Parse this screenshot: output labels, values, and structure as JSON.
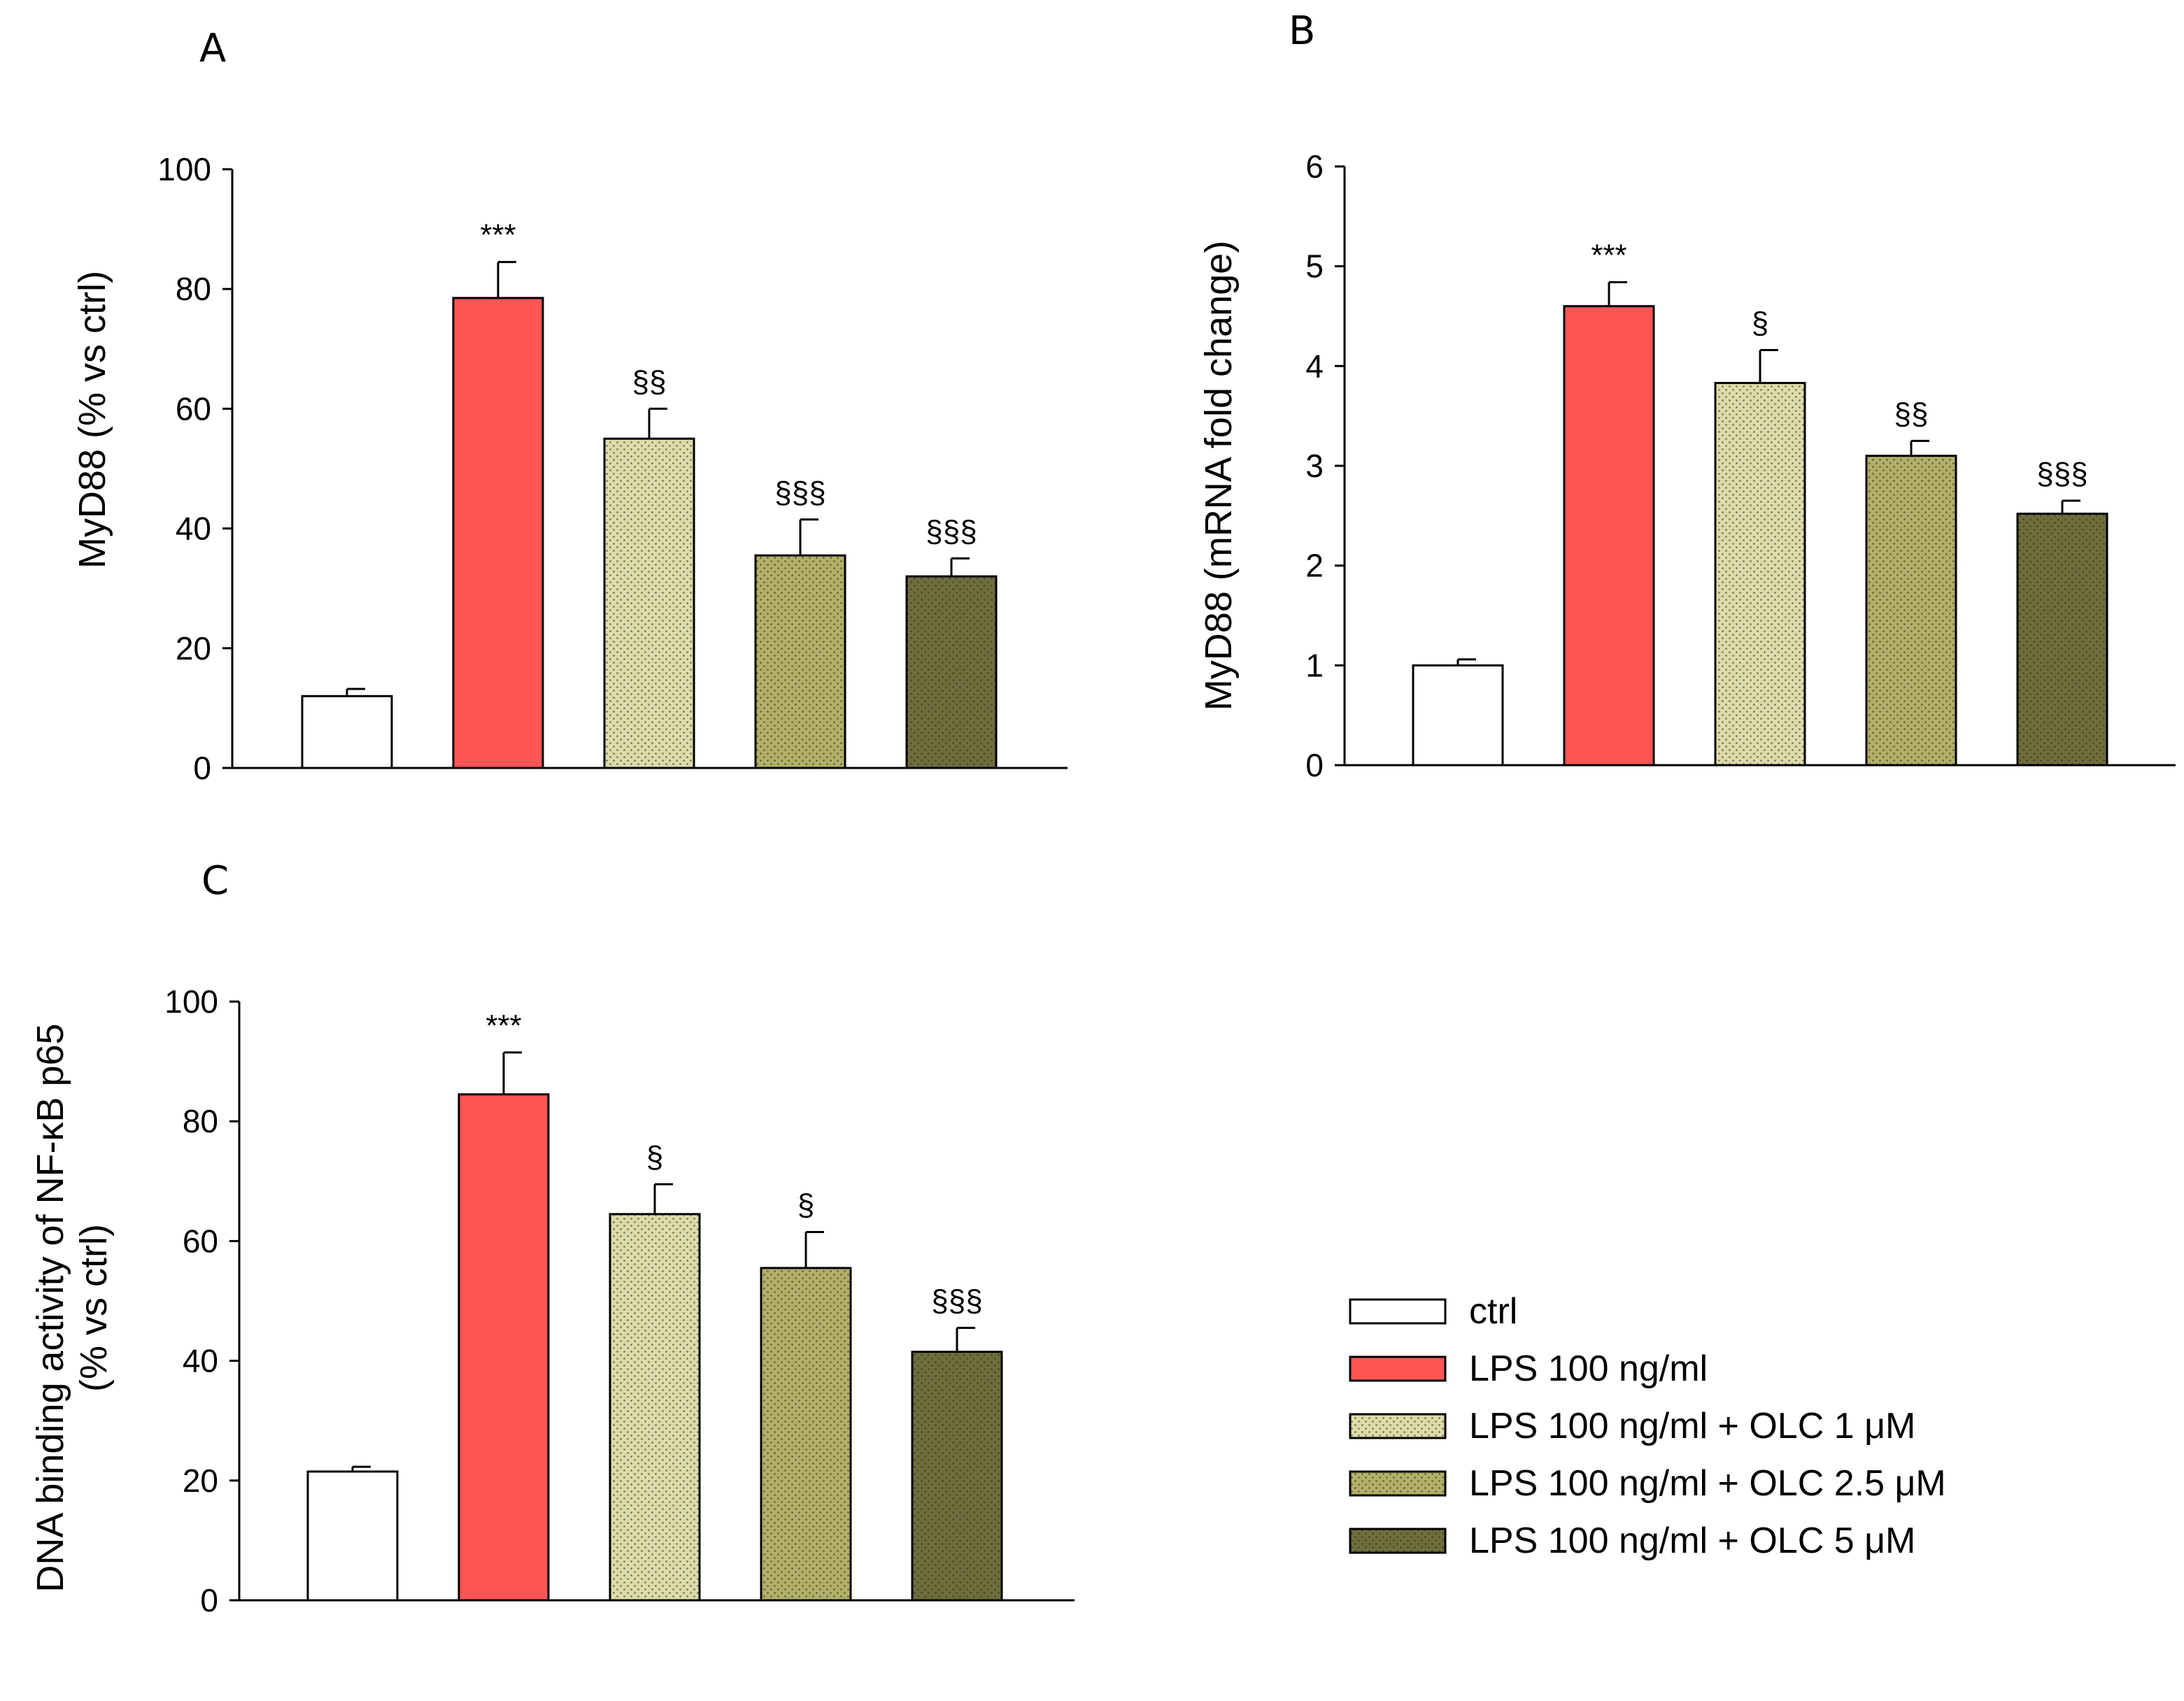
{
  "series_names": [
    "ctrl",
    "LPS 100 ng/ml",
    "LPS 100 ng/ml + OLC 1 μM",
    "LPS 100 ng/ml + OLC 2.5 μM",
    "LPS 100 ng/ml + OLC 5 μM"
  ],
  "series_colors": [
    "#ffffff",
    "#ff5555",
    "#dcdcaa",
    "#b2b068",
    "#6e6e3c"
  ],
  "series_patterns": [
    "none",
    "none",
    "dots",
    "dots",
    "dots"
  ],
  "chart_data": [
    {
      "panel": "A",
      "type": "bar",
      "ylabel": [
        "MyD88 (% vs ctrl)"
      ],
      "ylim": [
        0,
        100
      ],
      "yticks": [
        0,
        20,
        40,
        60,
        80,
        100
      ],
      "categories": [
        "ctrl",
        "LPS 100 ng/ml",
        "LPS 100 ng/ml + OLC 1 μM",
        "LPS 100 ng/ml + OLC 2.5 μM",
        "LPS 100 ng/ml + OLC 5 μM"
      ],
      "values": [
        12,
        78.5,
        55,
        35.5,
        32
      ],
      "errors": [
        1.2,
        6,
        5,
        6,
        3
      ],
      "annotations": [
        "",
        "***",
        "§§",
        "§§§",
        "§§§"
      ]
    },
    {
      "panel": "B",
      "type": "bar",
      "ylabel": [
        "MyD88 (mRNA fold change)"
      ],
      "ylim": [
        0,
        6
      ],
      "yticks": [
        0,
        1,
        2,
        3,
        4,
        5,
        6
      ],
      "categories": [
        "ctrl",
        "LPS 100 ng/ml",
        "LPS 100 ng/ml + OLC 1 μM",
        "LPS 100 ng/ml + OLC 2.5 μM",
        "LPS 100 ng/ml + OLC 5 μM"
      ],
      "values": [
        1.0,
        4.6,
        3.83,
        3.1,
        2.52
      ],
      "errors": [
        0.06,
        0.24,
        0.33,
        0.15,
        0.13
      ],
      "annotations": [
        "",
        "***",
        "§",
        "§§",
        "§§§"
      ]
    },
    {
      "panel": "C",
      "type": "bar",
      "ylabel": [
        "DNA binding activity of NF-κB p65",
        "(% vs ctrl)"
      ],
      "ylim": [
        0,
        100
      ],
      "yticks": [
        0,
        20,
        40,
        60,
        80,
        100
      ],
      "categories": [
        "ctrl",
        "LPS 100 ng/ml",
        "LPS 100 ng/ml + OLC 1 μM",
        "LPS 100 ng/ml + OLC 2.5 μM",
        "LPS 100 ng/ml + OLC 5 μM"
      ],
      "values": [
        21.5,
        84.5,
        64.5,
        55.5,
        41.5
      ],
      "errors": [
        0.8,
        7,
        5,
        6,
        4
      ],
      "annotations": [
        "",
        "***",
        "§",
        "§",
        "§§§"
      ]
    }
  ]
}
